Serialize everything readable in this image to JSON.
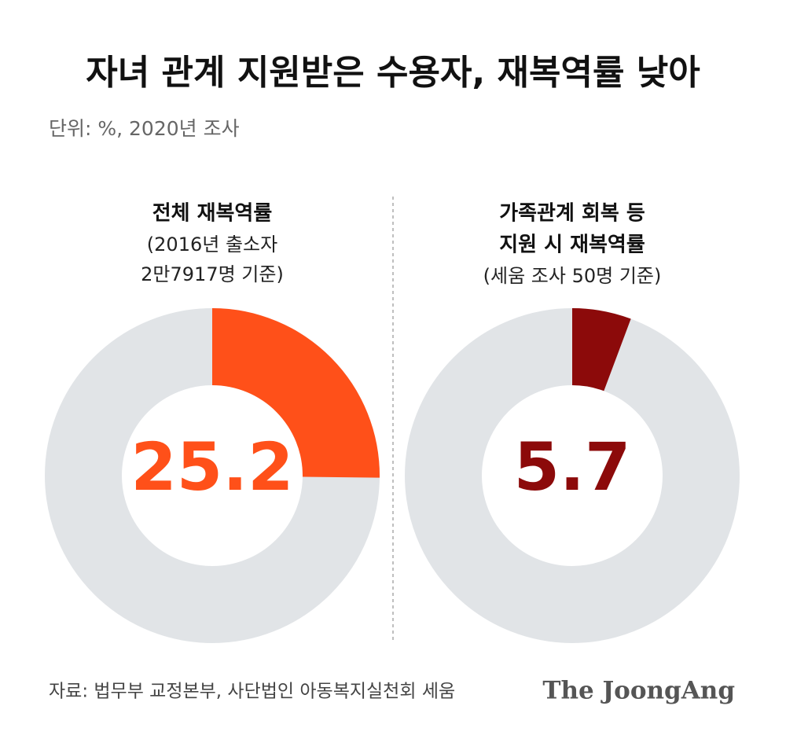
{
  "title": "자녀 관계 지원받은 수용자, 재복역률 낮아",
  "subtitle": "단위: %, 2020년 조사",
  "source": "자료: 법무부 교정본부, 사단법인 아동복지실천회 세움",
  "brand": "The JoongAng",
  "chart_data": [
    {
      "type": "donut",
      "title_lines": [
        "전체 재복역률"
      ],
      "note_lines": [
        "(2016년 출소자",
        "2만7917명 기준)"
      ],
      "values": [
        25.2
      ],
      "color": "#ff5019",
      "track_color": "#e1e4e7"
    },
    {
      "type": "donut",
      "title_lines": [
        "가족관계 회복 등",
        "지원 시 재복역률"
      ],
      "note_lines": [
        "(세움 조사 50명 기준)"
      ],
      "values": [
        5.7
      ],
      "color": "#8c0a0a",
      "track_color": "#e1e4e7"
    }
  ]
}
